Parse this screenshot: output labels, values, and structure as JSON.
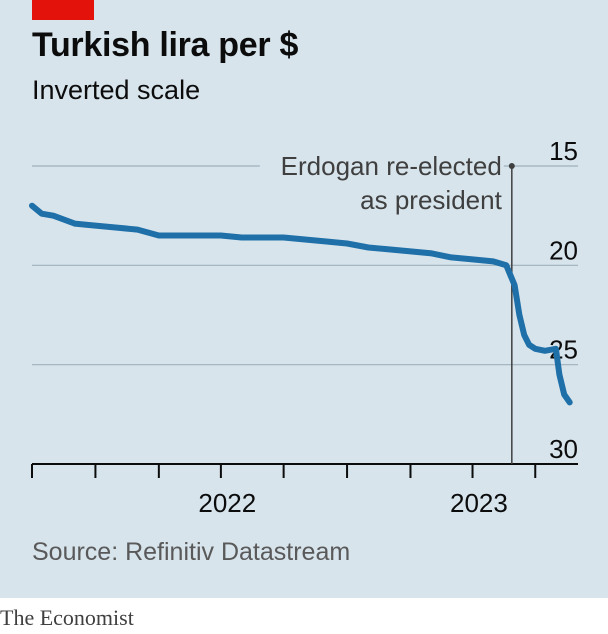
{
  "header": {
    "title": "Turkish lira per $",
    "subtitle": "Inverted scale"
  },
  "footer": {
    "source": "Source: Refinitiv Datastream",
    "brand": "The Economist"
  },
  "colors": {
    "background": "#d7e4ec",
    "line": "#1f6fa8",
    "accent_red": "#e3120b",
    "gridline": "#9fb1bd"
  },
  "chart_data": {
    "type": "line",
    "title": "Turkish lira per $",
    "subtitle": "Inverted scale",
    "y_inverted": true,
    "ylim": [
      15,
      30
    ],
    "y_ticks": [
      "15",
      "20",
      "25",
      "30"
    ],
    "x_tick_labels": [
      "2022",
      "2023"
    ],
    "xlim": [
      "2021-07-01",
      "2023-09-01"
    ],
    "annotation": {
      "date": "2023-05-28",
      "lines": [
        "Erdogan re-elected",
        "as president"
      ]
    },
    "series": [
      {
        "x": [
          "2021-07-01",
          "2021-07-15",
          "2021-08-01",
          "2021-09-01",
          "2021-10-01",
          "2021-11-01",
          "2021-12-01",
          "2022-01-01",
          "2022-02-01",
          "2022-03-01",
          "2022-04-01",
          "2022-05-01",
          "2022-06-01",
          "2022-07-01",
          "2022-08-01",
          "2022-09-01",
          "2022-10-01",
          "2022-11-01",
          "2022-12-01",
          "2023-01-01",
          "2023-02-01",
          "2023-03-01",
          "2023-04-01",
          "2023-05-01",
          "2023-05-20",
          "2023-06-01",
          "2023-06-08",
          "2023-06-15",
          "2023-06-22",
          "2023-07-01",
          "2023-07-15",
          "2023-07-31",
          "2023-08-05",
          "2023-08-12",
          "2023-08-20"
        ],
        "values": [
          17.0,
          17.4,
          17.5,
          17.9,
          18.0,
          18.1,
          18.2,
          18.5,
          18.5,
          18.5,
          18.5,
          18.6,
          18.6,
          18.6,
          18.7,
          18.8,
          18.9,
          19.1,
          19.2,
          19.3,
          19.4,
          19.6,
          19.7,
          19.8,
          20.0,
          21.0,
          22.5,
          23.5,
          24.0,
          24.2,
          24.3,
          24.2,
          25.5,
          26.5,
          26.9
        ]
      }
    ]
  }
}
